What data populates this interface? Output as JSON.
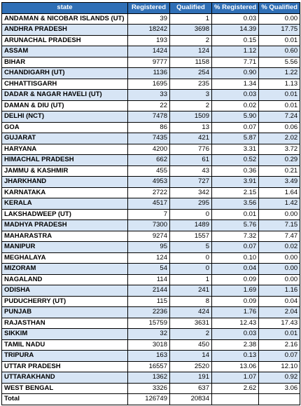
{
  "columns": [
    "state",
    "Registered",
    "Qualified",
    "% Registered",
    "% Qualified"
  ],
  "rows": [
    [
      "ANDAMAN & NICOBAR ISLANDS (UT)",
      "39",
      "1",
      "0.03",
      "0.00"
    ],
    [
      "ANDHRA PRADESH",
      "18242",
      "3698",
      "14.39",
      "17.75"
    ],
    [
      "ARUNACHAL PRADESH",
      "193",
      "2",
      "0.15",
      "0.01"
    ],
    [
      "ASSAM",
      "1424",
      "124",
      "1.12",
      "0.60"
    ],
    [
      "BIHAR",
      "9777",
      "1158",
      "7.71",
      "5.56"
    ],
    [
      "CHANDIGARH (UT)",
      "1136",
      "254",
      "0.90",
      "1.22"
    ],
    [
      "CHHATTISGARH",
      "1695",
      "235",
      "1.34",
      "1.13"
    ],
    [
      "DADAR & NAGAR HAVELI (UT)",
      "33",
      "3",
      "0.03",
      "0.01"
    ],
    [
      "DAMAN & DIU (UT)",
      "22",
      "2",
      "0.02",
      "0.01"
    ],
    [
      "DELHI (NCT)",
      "7478",
      "1509",
      "5.90",
      "7.24"
    ],
    [
      "GOA",
      "86",
      "13",
      "0.07",
      "0.06"
    ],
    [
      "GUJARAT",
      "7435",
      "421",
      "5.87",
      "2.02"
    ],
    [
      "HARYANA",
      "4200",
      "776",
      "3.31",
      "3.72"
    ],
    [
      "HIMACHAL PRADESH",
      "662",
      "61",
      "0.52",
      "0.29"
    ],
    [
      "JAMMU & KASHMIR",
      "455",
      "43",
      "0.36",
      "0.21"
    ],
    [
      "JHARKHAND",
      "4953",
      "727",
      "3.91",
      "3.49"
    ],
    [
      "KARNATAKA",
      "2722",
      "342",
      "2.15",
      "1.64"
    ],
    [
      "KERALA",
      "4517",
      "295",
      "3.56",
      "1.42"
    ],
    [
      "LAKSHADWEEP (UT)",
      "7",
      "0",
      "0.01",
      "0.00"
    ],
    [
      "MADHYA PRADESH",
      "7300",
      "1489",
      "5.76",
      "7.15"
    ],
    [
      "MAHARASTRA",
      "9274",
      "1557",
      "7.32",
      "7.47"
    ],
    [
      "MANIPUR",
      "95",
      "5",
      "0.07",
      "0.02"
    ],
    [
      "MEGHALAYA",
      "124",
      "0",
      "0.10",
      "0.00"
    ],
    [
      "MIZORAM",
      "54",
      "0",
      "0.04",
      "0.00"
    ],
    [
      "NAGALAND",
      "114",
      "1",
      "0.09",
      "0.00"
    ],
    [
      "ODISHA",
      "2144",
      "241",
      "1.69",
      "1.16"
    ],
    [
      "PUDUCHERRY (UT)",
      "115",
      "8",
      "0.09",
      "0.04"
    ],
    [
      "PUNJAB",
      "2236",
      "424",
      "1.76",
      "2.04"
    ],
    [
      "RAJASTHAN",
      "15759",
      "3631",
      "12.43",
      "17.43"
    ],
    [
      "SIKKIM",
      "32",
      "2",
      "0.03",
      "0.01"
    ],
    [
      "TAMIL NADU",
      "3018",
      "450",
      "2.38",
      "2.16"
    ],
    [
      "TRIPURA",
      "163",
      "14",
      "0.13",
      "0.07"
    ],
    [
      "UTTAR PRADESH",
      "16557",
      "2520",
      "13.06",
      "12.10"
    ],
    [
      "UTTARAKHAND",
      "1362",
      "191",
      "1.07",
      "0.92"
    ],
    [
      "WEST BENGAL",
      "3326",
      "637",
      "2.62",
      "3.06"
    ]
  ],
  "total": [
    "Total",
    "126749",
    "20834",
    "",
    ""
  ],
  "colors": {
    "header_bg": "#2f6fb6",
    "stripe_bg": "#d7e5f5"
  }
}
